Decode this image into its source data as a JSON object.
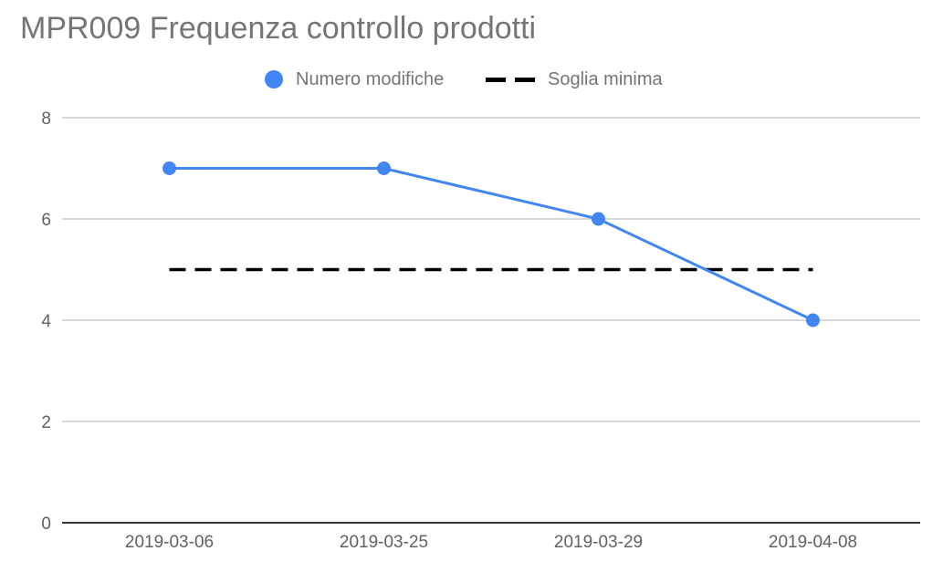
{
  "chart_data": {
    "type": "line",
    "title": "MPR009 Frequenza controllo prodotti",
    "categories": [
      "2019-03-06",
      "2019-03-25",
      "2019-03-29",
      "2019-04-08"
    ],
    "series": [
      {
        "name": "Numero modifiche",
        "values": [
          7,
          7,
          6,
          4
        ],
        "color": "#4285f4",
        "style": "solid-markers"
      },
      {
        "name": "Soglia minima",
        "values": [
          5,
          5,
          5,
          5
        ],
        "color": "#000000",
        "style": "dashed"
      }
    ],
    "y_ticks": [
      "0",
      "2",
      "4",
      "6",
      "8"
    ],
    "ylim": [
      0,
      8
    ],
    "grid": true,
    "legend_position": "top-center",
    "xlabel": "",
    "ylabel": ""
  }
}
